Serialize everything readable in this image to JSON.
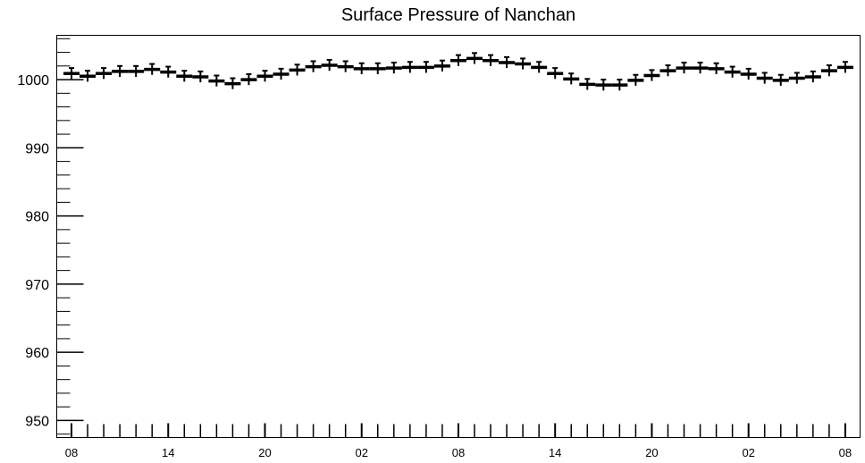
{
  "chart_data": {
    "type": "scatter",
    "title": "Surface Pressure of Nanchan",
    "xlabel": "",
    "ylabel": "",
    "ylim": [
      947.5,
      1006.5
    ],
    "y_ticks": [
      950,
      960,
      970,
      980,
      990,
      1000
    ],
    "y_tick_labels": [
      "950",
      "960",
      "970",
      "980",
      "990",
      "1000"
    ],
    "x_tick_labels": [
      "08",
      "14",
      "20",
      "02",
      "08",
      "14",
      "20",
      "02",
      "08"
    ],
    "x_hours_from_start": [
      0,
      6,
      12,
      18,
      24,
      30,
      36,
      42,
      48
    ],
    "x_major_step_hours": 6,
    "x_minor_step_hours": 1,
    "grid": false,
    "legend": "none",
    "marker_color": "#000000",
    "error_bar": 0.8,
    "series": [
      {
        "values": [
          1000.9,
          1000.5,
          1000.9,
          1001.2,
          1001.2,
          1001.5,
          1001.1,
          1000.5,
          1000.4,
          999.8,
          999.4,
          1000.0,
          1000.5,
          1000.8,
          1001.4,
          1001.9,
          1002.1,
          1001.9,
          1001.6,
          1001.6,
          1001.7,
          1001.8,
          1001.8,
          1002.0,
          1002.8,
          1003.1,
          1002.8,
          1002.5,
          1002.3,
          1001.8,
          1000.9,
          1000.1,
          999.3,
          999.2,
          999.2,
          999.9,
          1000.6,
          1001.3,
          1001.7,
          1001.7,
          1001.6,
          1001.1,
          1000.8,
          1000.2,
          999.9,
          1000.2,
          1000.4,
          1001.3,
          1001.8
        ]
      }
    ]
  }
}
